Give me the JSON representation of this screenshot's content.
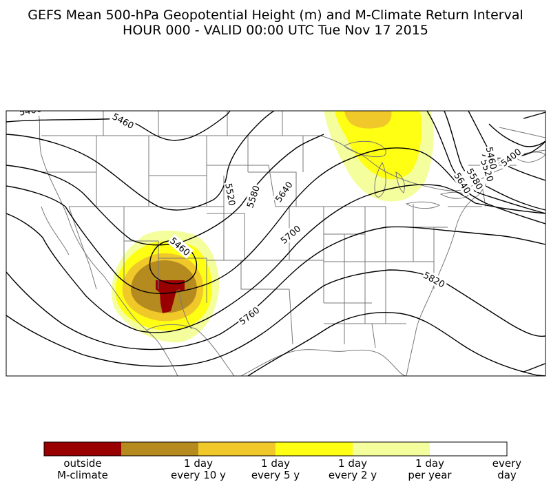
{
  "title": {
    "line1": "GEFS Mean 500-hPa Geopotential Height (m) and M-Climate Return Interval",
    "line2": "HOUR 000 - VALID 00:00 UTC Tue Nov 17 2015"
  },
  "contour_labels": [
    "5460",
    "5460",
    "5520",
    "5580",
    "5640",
    "5700",
    "5760",
    "5820",
    "5460",
    "5520",
    "5580",
    "5640",
    "5400",
    "5460"
  ],
  "colorbar": {
    "colors": [
      "#990000",
      "#b58a1f",
      "#f0c829",
      "#ffff14",
      "#f5fe9c",
      "#ffffff"
    ],
    "labels": [
      {
        "l1": "outside",
        "l2": "M-climate"
      },
      {
        "l1": "1 day",
        "l2": "every 10 y"
      },
      {
        "l1": "1 day",
        "l2": "every 5 y"
      },
      {
        "l1": "1 day",
        "l2": "every 2 y"
      },
      {
        "l1": "1 day",
        "l2": "per year"
      },
      {
        "l1": "every",
        "l2": "day"
      }
    ]
  }
}
